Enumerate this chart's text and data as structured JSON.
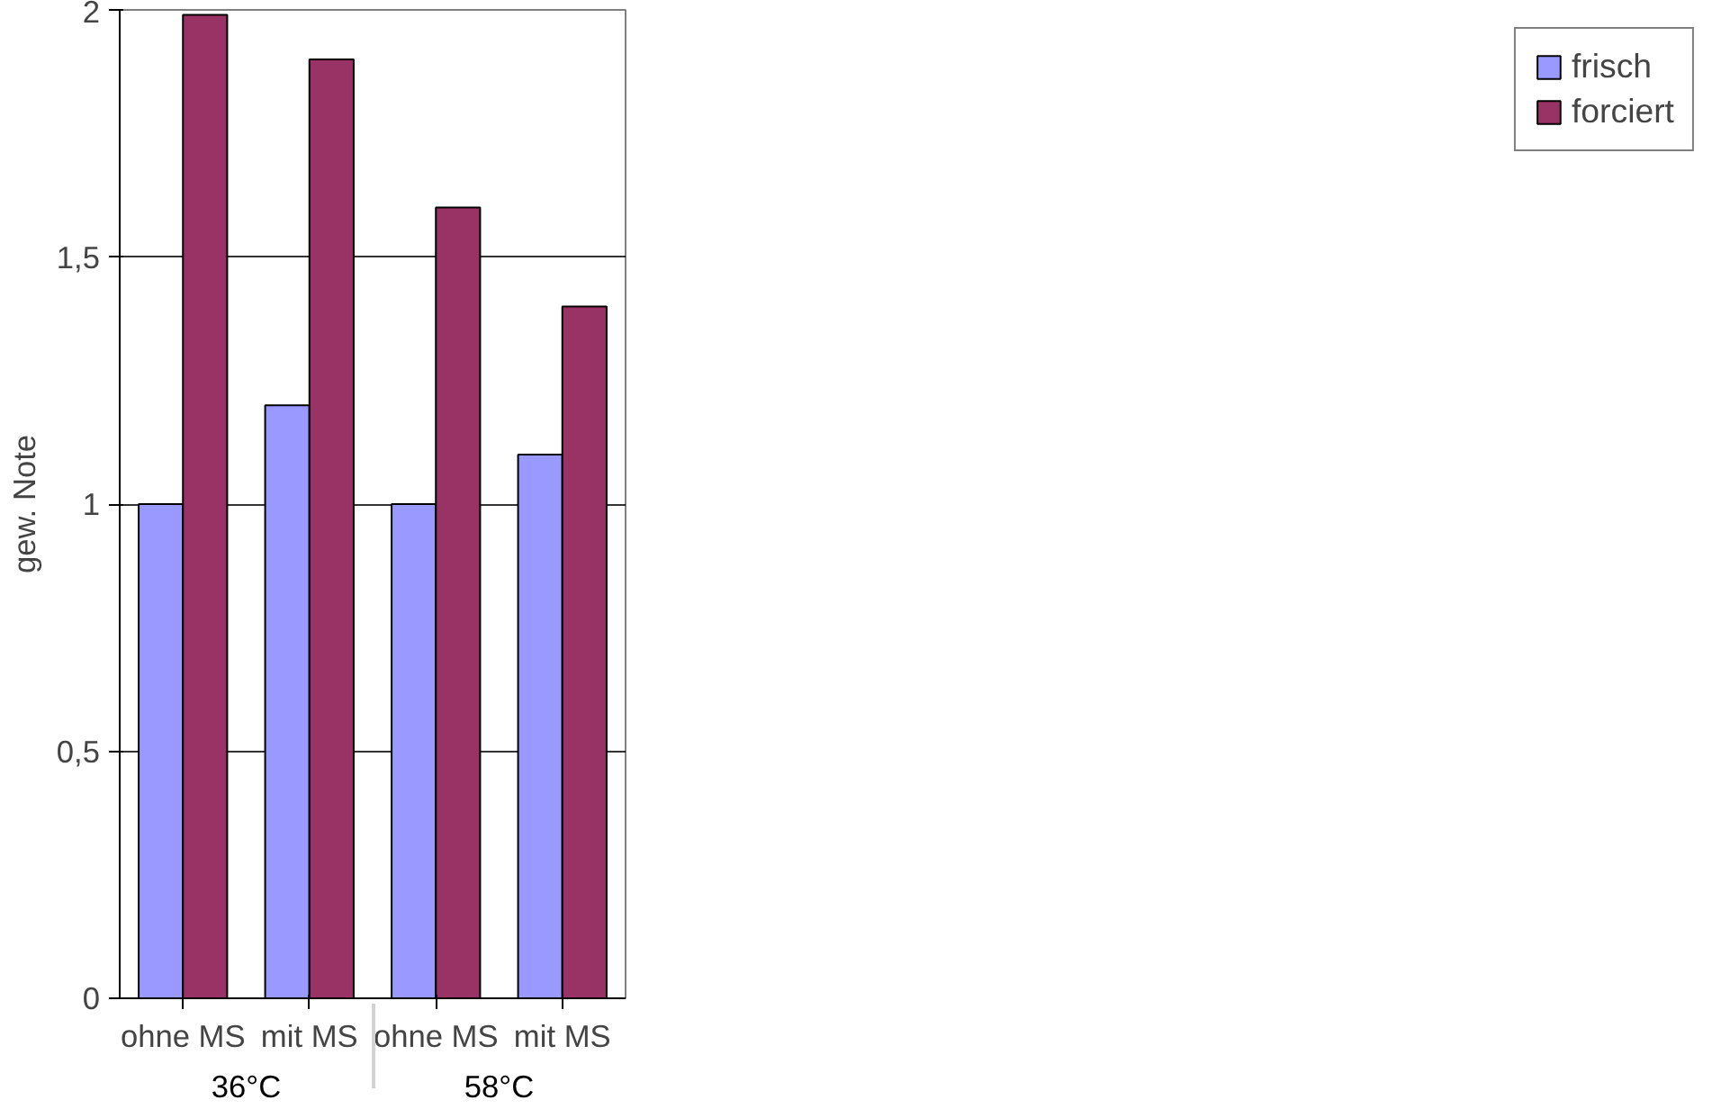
{
  "chart_data": {
    "type": "bar",
    "ylabel": "gew. Note",
    "categories": [
      "ohne MS",
      "mit MS",
      "ohne MS",
      "mit MS"
    ],
    "annotations": [
      "36°C",
      "58°C"
    ],
    "series": [
      {
        "name": "frisch",
        "color": "#9999ff",
        "values": [
          1,
          1.2,
          1,
          1.1
        ]
      },
      {
        "name": "forciert",
        "color": "#993366",
        "values": [
          1.99,
          1.9,
          1.6,
          1.4
        ]
      }
    ],
    "ylim": [
      0,
      2
    ],
    "yticks": [
      0,
      {
        "value": 0.5,
        "label": "0,5"
      },
      1,
      {
        "value": 1.5,
        "label": "1,5"
      },
      2
    ],
    "grid": "y",
    "legend": "right"
  }
}
